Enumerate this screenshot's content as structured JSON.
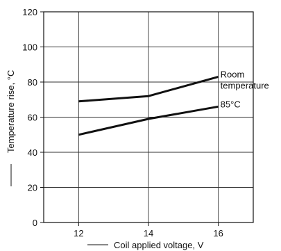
{
  "chart_data": {
    "type": "line",
    "x": [
      12,
      14,
      16
    ],
    "xticks": [
      12,
      14,
      16
    ],
    "yticks": [
      0,
      20,
      40,
      60,
      80,
      100,
      120
    ],
    "xlim": [
      11,
      17
    ],
    "ylim": [
      0,
      120
    ],
    "xlabel": "Coil applied voltage, V",
    "ylabel": "Temperature rise, °C",
    "grid": true,
    "series": [
      {
        "name": "Room temperature",
        "name_lines": [
          "Room",
          "temperature"
        ],
        "values": [
          69,
          72,
          83
        ]
      },
      {
        "name": "85°C",
        "name_lines": [
          "85°C"
        ],
        "values": [
          50,
          59,
          66
        ]
      }
    ]
  },
  "colors": {
    "line": "#111111",
    "grid": "#333333",
    "axis": "#111111"
  }
}
